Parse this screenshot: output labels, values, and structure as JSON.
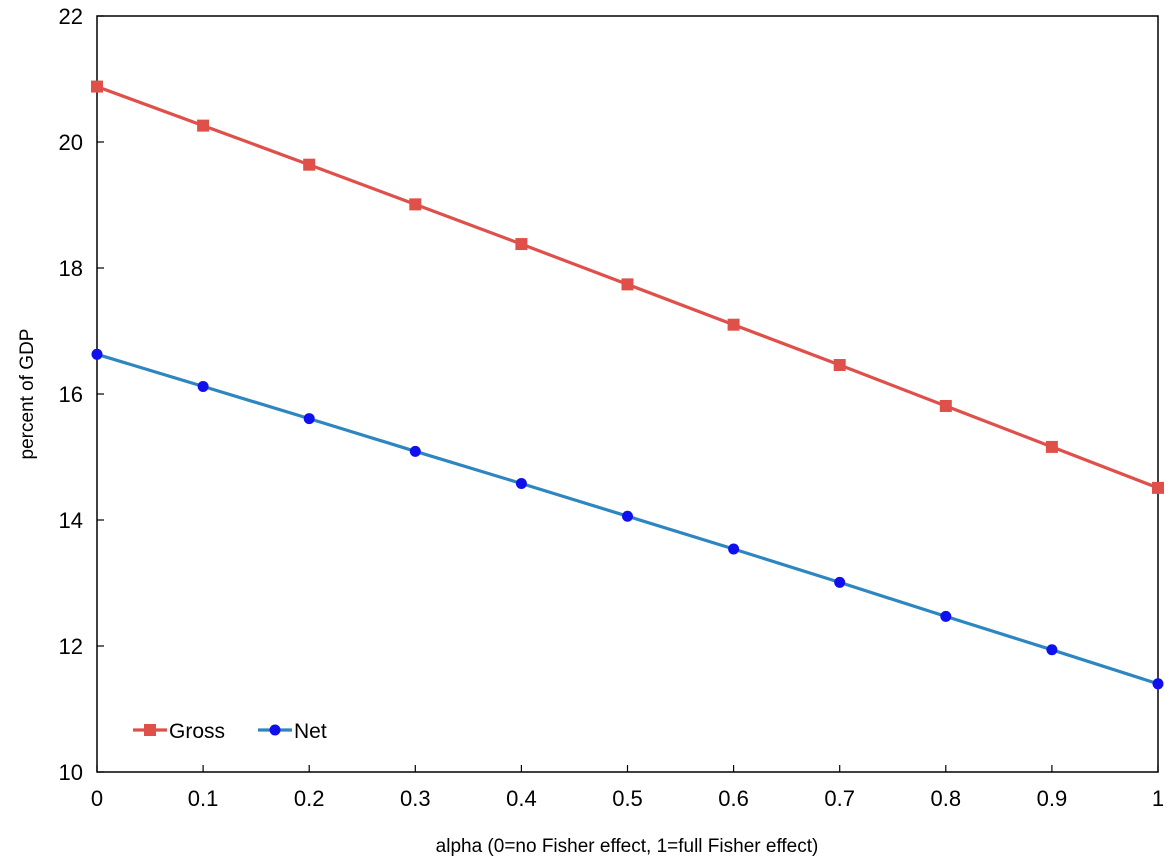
{
  "chart_data": {
    "type": "line",
    "title": "",
    "xlabel": "alpha (0=no Fisher effect, 1=full Fisher effect)",
    "ylabel": "percent of GDP",
    "xlim": [
      0,
      1
    ],
    "ylim": [
      10,
      22
    ],
    "x_ticks": [
      "0",
      "0.1",
      "0.2",
      "0.3",
      "0.4",
      "0.5",
      "0.6",
      "0.7",
      "0.8",
      "0.9",
      "1"
    ],
    "y_ticks": [
      "10",
      "12",
      "14",
      "16",
      "18",
      "20",
      "22"
    ],
    "x": [
      0,
      0.1,
      0.2,
      0.3,
      0.4,
      0.5,
      0.6,
      0.7,
      0.8,
      0.9,
      1
    ],
    "series": [
      {
        "name": "Gross",
        "color": "#e0504a",
        "marker": "square",
        "values": [
          20.88,
          20.26,
          19.64,
          19.01,
          18.38,
          17.74,
          17.1,
          16.46,
          15.81,
          15.16,
          14.51
        ]
      },
      {
        "name": "Net",
        "color": "#2e86c1",
        "marker": "circle",
        "marker_color": "#1010ee",
        "values": [
          16.63,
          16.12,
          15.61,
          15.09,
          14.58,
          14.06,
          13.54,
          13.01,
          12.47,
          11.94,
          11.4
        ]
      }
    ],
    "legend_position": "bottom-left",
    "grid": false
  }
}
